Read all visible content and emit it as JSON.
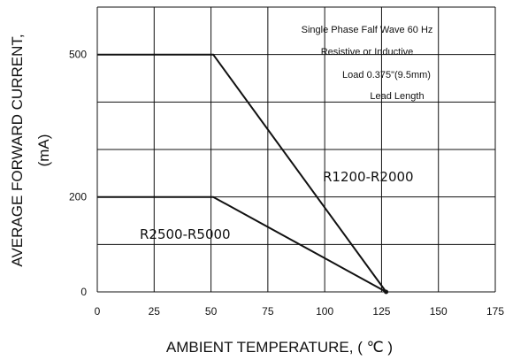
{
  "chart_data": {
    "type": "line",
    "title": "",
    "xlabel": "AMBIENT TEMPERATURE, ( ℃ )",
    "ylabel_line1": "AVERAGE FORWARD CURRENT,",
    "ylabel_line2": "(mA)",
    "xlim": [
      0,
      175
    ],
    "ylim": [
      0,
      600
    ],
    "x_ticks": [
      0,
      25,
      50,
      75,
      100,
      125,
      150,
      175
    ],
    "x_tick_labels": [
      "0",
      "25",
      "50",
      "75",
      "100",
      "125",
      "150",
      "175"
    ],
    "y_ticks": [
      0,
      200,
      500
    ],
    "y_tick_labels": [
      "0",
      "200",
      "500"
    ],
    "x_gridlines": [
      0,
      25,
      50,
      75,
      100,
      125,
      150,
      175
    ],
    "y_gridlines": [
      0,
      100,
      200,
      300,
      400,
      500,
      600
    ],
    "grid": true,
    "series": [
      {
        "name": "R1200-R2000",
        "x": [
          0,
          51,
          127
        ],
        "y": [
          500,
          500,
          0
        ]
      },
      {
        "name": "R2500-R5000",
        "x": [
          0,
          51,
          127
        ],
        "y": [
          200,
          200,
          0
        ]
      }
    ],
    "annotations": [
      "Single Phase Falf Wave 60 Hz",
      "Resistive or Inductive",
      "Load 0.375\"(9.5mm)",
      "Lead Length"
    ],
    "colors": {
      "line": "#111111",
      "grid": "#111111",
      "background": "#ffffff"
    }
  }
}
